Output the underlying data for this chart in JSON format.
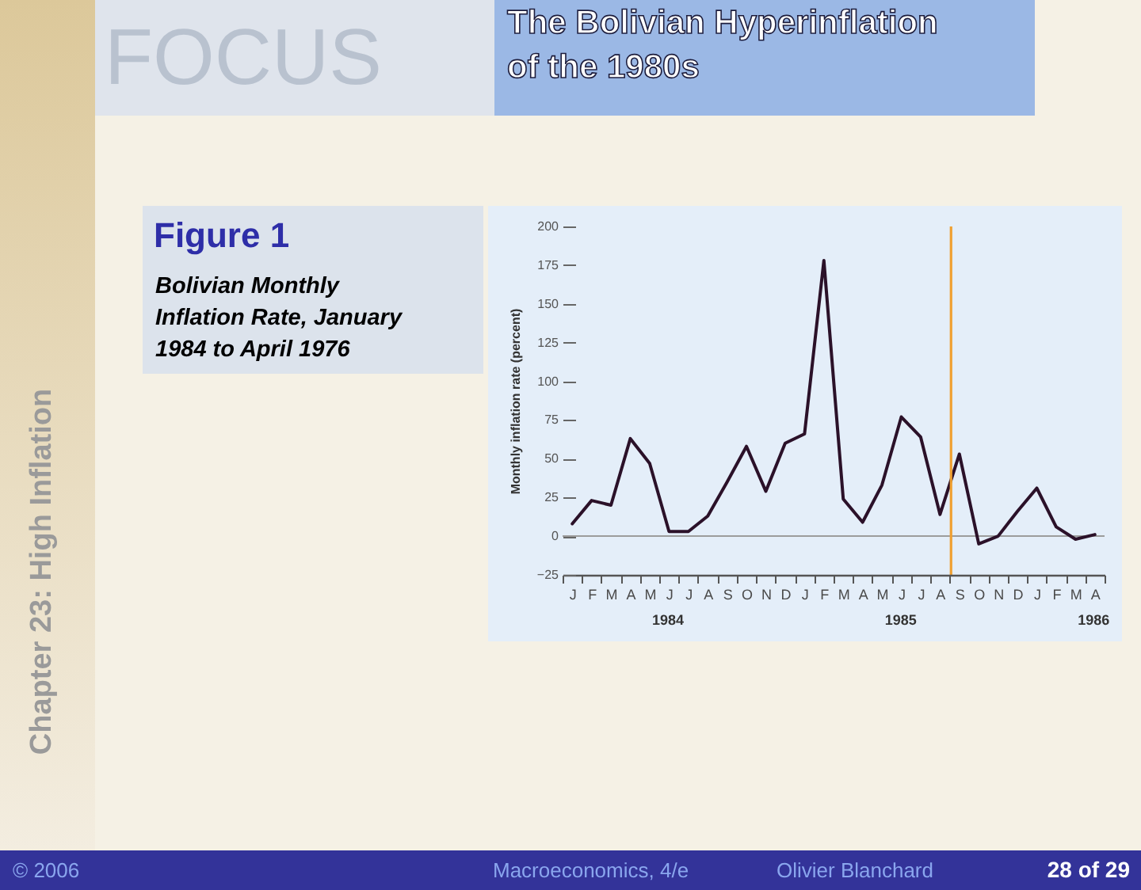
{
  "chart_data": {
    "type": "line",
    "title": "The Bolivian Hyperinflation of the 1980s",
    "subtitle": "Figure 1",
    "ylabel": "Monthly inflation rate (percent)",
    "categories": [
      "J",
      "F",
      "M",
      "A",
      "M",
      "J",
      "J",
      "A",
      "S",
      "O",
      "N",
      "D",
      "J",
      "F",
      "M",
      "A",
      "M",
      "J",
      "J",
      "A",
      "S",
      "O",
      "N",
      "D",
      "J",
      "F",
      "M",
      "A"
    ],
    "series": [
      {
        "color": "#2b1129",
        "values": [
          8,
          23,
          20,
          63,
          47,
          3,
          3,
          13,
          35,
          58,
          29,
          60,
          66,
          178,
          24,
          9,
          33,
          77,
          64,
          14,
          53,
          -5,
          0,
          16,
          31,
          6,
          -2,
          1
        ]
      }
    ],
    "x2lim": [
      1984,
      1986.33
    ],
    "x2ticks": [
      {
        "value": 1984.45,
        "label": "1984"
      },
      {
        "value": 1985.45,
        "label": "1985"
      },
      {
        "value": 1986.28,
        "label": "1986"
      }
    ],
    "ylim": [
      -25,
      200
    ],
    "yticks": [
      -25,
      0,
      25,
      50,
      75,
      100,
      125,
      150,
      175,
      200
    ],
    "ref_lines": [
      {
        "axis": "y",
        "value": 0,
        "color": "#9c9c9c"
      },
      {
        "axis": "x2",
        "value": 1985.67,
        "color": "#f0a030"
      }
    ],
    "annotations": [
      "Bolivian Monthly Inflation Rate, January 1984 to April 1976",
      "FOCUS",
      "Chapter 23: High Inflation",
      "© 2006",
      "Macroeconomics, 4/e",
      "Olivier Blanchard",
      "28 of 29"
    ]
  }
}
